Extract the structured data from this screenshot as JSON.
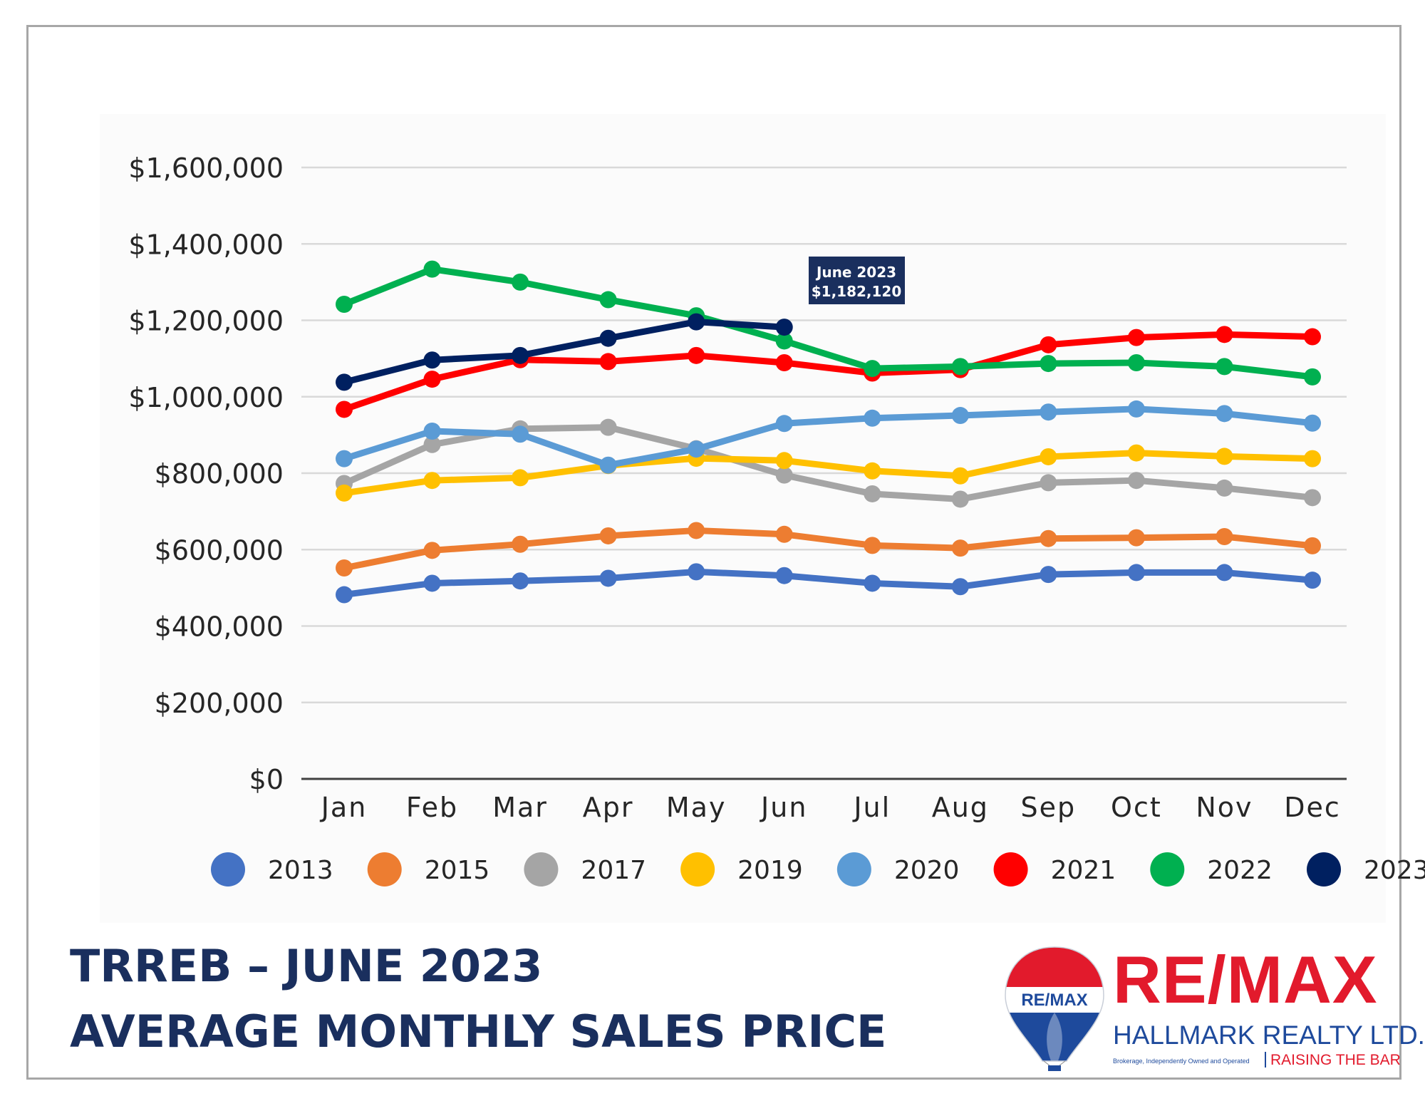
{
  "colors": {
    "title": "#1a2f5e",
    "brand_red": "#e21a2c",
    "brand_blue": "#1e4a9c",
    "frame": "#a7a7a7",
    "grid": "#d9d9d9",
    "axis": "#404040",
    "callout_bg": "#1a2f5e"
  },
  "title": {
    "line1": "TRREB – JUNE 2023",
    "line2": "AVERAGE MONTHLY SALES PRICE"
  },
  "callout": {
    "line1": "June 2023",
    "line2": "$1,182,120",
    "series": "2023",
    "month": "Jun"
  },
  "logo": {
    "balloon_text": "RE/MAX",
    "name": "RE/MAX",
    "subtitle": "HALLMARK REALTY LTD.",
    "fine_print": "Brokerage, Independently Owned and Operated",
    "tagline": "RAISING THE BAR",
    "icon": "hot-air-balloon-icon"
  },
  "chart_data": {
    "type": "line",
    "title": "",
    "xlabel": "",
    "ylabel": "",
    "categories": [
      "Jan",
      "Feb",
      "Mar",
      "Apr",
      "May",
      "Jun",
      "Jul",
      "Aug",
      "Sep",
      "Oct",
      "Nov",
      "Dec"
    ],
    "ylim": [
      0,
      1600000
    ],
    "yticks": [
      0,
      200000,
      400000,
      600000,
      800000,
      1000000,
      1200000,
      1400000,
      1600000
    ],
    "ytick_labels": [
      "$0",
      "$200,000",
      "$400,000",
      "$600,000",
      "$800,000",
      "$1,000,000",
      "$1,200,000",
      "$1,400,000",
      "$1,600,000"
    ],
    "grid": true,
    "legend_position": "bottom",
    "series": [
      {
        "name": "2013",
        "color": "#4472c4",
        "values": [
          482000,
          512000,
          518000,
          525000,
          542000,
          532000,
          512000,
          503000,
          535000,
          540000,
          540000,
          520000
        ]
      },
      {
        "name": "2015",
        "color": "#ed7d31",
        "values": [
          552000,
          598000,
          614000,
          636000,
          650000,
          640000,
          611000,
          604000,
          629000,
          631000,
          634000,
          610000
        ]
      },
      {
        "name": "2017",
        "color": "#a5a5a5",
        "values": [
          773000,
          875000,
          916000,
          920000,
          864000,
          795000,
          746000,
          732000,
          775000,
          781000,
          761000,
          736000
        ]
      },
      {
        "name": "2019",
        "color": "#ffc000",
        "values": [
          748000,
          781000,
          788000,
          820000,
          839000,
          833000,
          806000,
          793000,
          843000,
          853000,
          844000,
          838000
        ]
      },
      {
        "name": "2020",
        "color": "#5b9bd5",
        "values": [
          838000,
          910000,
          902000,
          821000,
          863000,
          930000,
          944000,
          951000,
          960000,
          968000,
          956000,
          931000
        ]
      },
      {
        "name": "2021",
        "color": "#ff0000",
        "values": [
          967000,
          1046000,
          1097000,
          1092000,
          1108000,
          1089000,
          1062000,
          1071000,
          1136000,
          1155000,
          1163000,
          1157000
        ]
      },
      {
        "name": "2022",
        "color": "#00b050",
        "values": [
          1242000,
          1334000,
          1300000,
          1254000,
          1212000,
          1146000,
          1074000,
          1079000,
          1087000,
          1089000,
          1079000,
          1052000
        ]
      },
      {
        "name": "2023",
        "color": "#002060",
        "values": [
          1038000,
          1096000,
          1108000,
          1153000,
          1196000,
          1182120,
          null,
          null,
          null,
          null,
          null,
          null
        ]
      }
    ]
  }
}
